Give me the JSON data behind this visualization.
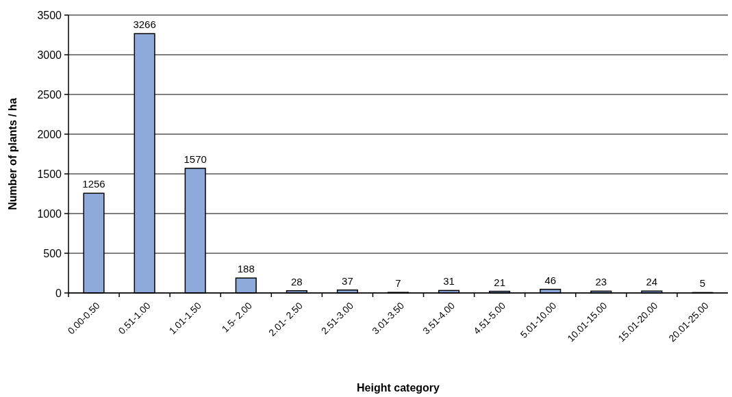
{
  "chart_data": {
    "type": "bar",
    "xlabel": "Height category",
    "ylabel": "Number of plants / ha",
    "categories": [
      "0.00-0.50",
      "0.51-1.00",
      "1.01-1.50",
      "1.5- 2.00",
      "2.01- 2.50",
      "2.51-3.00",
      "3.01-3.50",
      "3.51-4.00",
      "4.51-5.00",
      "5.01-10.00",
      "10.01-15.00",
      "15.01-20.00",
      "20.01-25.00"
    ],
    "values": [
      1256,
      3266,
      1570,
      188,
      28,
      37,
      7,
      31,
      21,
      46,
      23,
      24,
      5
    ],
    "color": "#8eaadb",
    "ylim": [
      0,
      3500
    ],
    "yticks": [
      0,
      500,
      1000,
      1500,
      2000,
      2500,
      3000,
      3500
    ],
    "grid": "y",
    "data_labels": true
  }
}
